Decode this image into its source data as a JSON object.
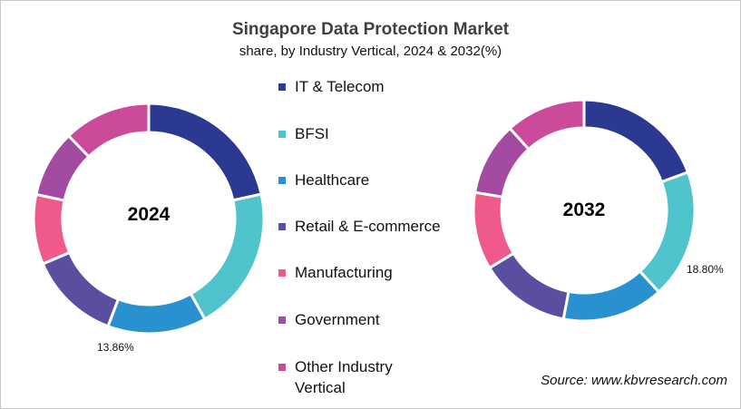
{
  "chart_data": [
    {
      "type": "pie",
      "variant": "donut",
      "title": "Singapore Data Protection Market",
      "subtitle": "share, by Industry Vertical, 2024 & 2032(%)",
      "center_label": "2024",
      "categories": [
        "IT & Telecom",
        "BFSI",
        "Healthcare",
        "Retail & E-commerce",
        "Manufacturing",
        "Government",
        "Other Industry Vertical"
      ],
      "values": [
        21.6,
        20.3,
        13.86,
        12.8,
        9.8,
        9.4,
        12.24
      ],
      "data_labels": [
        {
          "category": "Healthcare",
          "text": "13.86%"
        }
      ]
    },
    {
      "type": "pie",
      "variant": "donut",
      "center_label": "2032",
      "categories": [
        "IT & Telecom",
        "BFSI",
        "Healthcare",
        "Retail & E-commerce",
        "Manufacturing",
        "Government",
        "Other Industry Vertical"
      ],
      "values": [
        19.4,
        18.8,
        14.8,
        13.3,
        11.3,
        10.7,
        11.7
      ],
      "data_labels": [
        {
          "category": "BFSI",
          "text": "18.80%"
        }
      ]
    }
  ],
  "legend": {
    "placement": "center",
    "items": [
      {
        "label": "IT & Telecom",
        "color": "#2b3990"
      },
      {
        "label": "BFSI",
        "color": "#4fc4cc"
      },
      {
        "label": "Healthcare",
        "color": "#2a91d0"
      },
      {
        "label": "Retail & E-commerce",
        "color": "#5a4ea0"
      },
      {
        "label": "Manufacturing",
        "color": "#ef5a8a"
      },
      {
        "label": "Government",
        "color": "#a34aa1"
      },
      {
        "label": "Other Industry",
        "label_line2": "Vertical",
        "color": "#cc4a9a"
      }
    ]
  },
  "source": "Source: www.kbvresearch.com"
}
